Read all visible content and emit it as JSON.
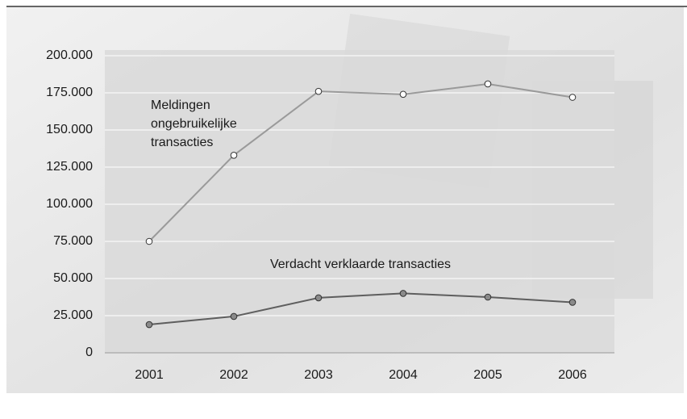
{
  "chart_data": {
    "type": "line",
    "categories": [
      "2001",
      "2002",
      "2003",
      "2004",
      "2005",
      "2006"
    ],
    "series": [
      {
        "name": "Meldingen ongebruikelijke transacties",
        "color": "#9a9a9a",
        "marker_fill": "#ffffff",
        "values": [
          75000,
          133000,
          176000,
          174000,
          181000,
          172000
        ]
      },
      {
        "name": "Verdacht verklaarde transacties",
        "color": "#5e5e5e",
        "marker_fill": "#8a8a8a",
        "values": [
          19000,
          24500,
          37000,
          40000,
          37500,
          34000
        ]
      }
    ],
    "ylim": [
      0,
      200000
    ],
    "yticks": [
      0,
      {
        "value": 25000,
        "label": "25.000"
      },
      {
        "value": 50000,
        "label": "50.000"
      },
      {
        "value": 75000,
        "label": "75.000"
      },
      {
        "value": 100000,
        "label": "100.000"
      },
      {
        "value": 125000,
        "label": "125.000"
      },
      {
        "value": 150000,
        "label": "150.000"
      },
      {
        "value": 175000,
        "label": "175.000"
      },
      {
        "value": 200000,
        "label": "200.000"
      }
    ],
    "grid": true
  }
}
